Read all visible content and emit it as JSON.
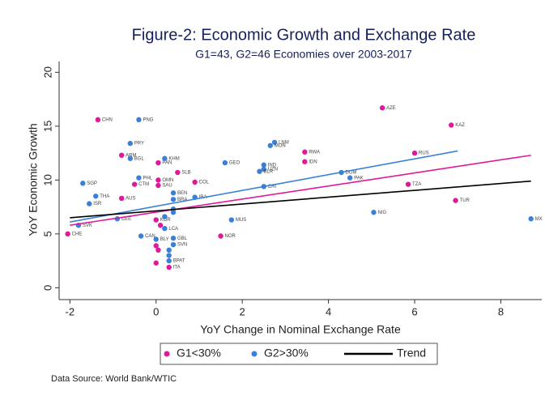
{
  "chart_data": {
    "type": "scatter",
    "title": "Figure-2: Economic Growth and Exchange Rate",
    "subtitle": "G1=43, G2=46 Economies over 2003-2017",
    "x_label": "YoY Change in Nominal Exchange Rate",
    "y_label": "YoY Economic Growth",
    "source": "Data Source: World Bank/WTIC",
    "xlim": [
      -2.25,
      8.95
    ],
    "ylim": [
      -1.1,
      21
    ],
    "xticks": [
      -2,
      0,
      2,
      4,
      6,
      8
    ],
    "yticks": [
      0,
      5,
      10,
      15,
      20
    ],
    "grid": false,
    "legend": "bottom",
    "series": [
      {
        "name": "G1<30%",
        "color": "#e0189a",
        "x": [
          -1.35,
          -0.8,
          0.05,
          0.5,
          0.05,
          0.05,
          -0.5,
          -0.8,
          0.9,
          0.0,
          0.1,
          -2.05,
          1.5,
          3.45,
          3.45,
          5.25,
          6.85,
          6.0,
          5.85,
          6.95,
          0.0,
          0.05,
          0.0,
          0.3
        ],
        "values": [
          15.6,
          12.3,
          11.6,
          10.7,
          10.0,
          9.5,
          9.6,
          8.3,
          9.8,
          6.3,
          5.8,
          5.0,
          4.8,
          12.6,
          11.7,
          16.7,
          15.1,
          12.5,
          9.6,
          8.1,
          3.9,
          3.5,
          2.3,
          1.9
        ],
        "labels": [
          "CHN",
          "ARM",
          "PAN",
          "SLB",
          "OMN",
          "SAU",
          "CTM",
          "AUS",
          "COL",
          "KOR",
          null,
          "CHE",
          "NOR",
          "RWA",
          "IDN",
          "AZE",
          "KAZ",
          "RUS",
          "TZA",
          "TUR",
          null,
          null,
          null,
          "ITA"
        ]
      },
      {
        "name": "G2>30%",
        "color": "#3b80d8",
        "x": [
          -0.4,
          -0.6,
          -0.6,
          0.2,
          -0.4,
          -1.7,
          -1.4,
          -1.55,
          -0.9,
          -1.8,
          -0.35,
          1.6,
          2.75,
          2.65,
          2.5,
          2.5,
          2.4,
          4.3,
          4.5,
          2.5,
          1.75,
          5.05,
          8.7,
          0.9,
          0.4,
          0.4,
          0.4,
          0.2,
          0.2,
          0.0,
          0.4,
          0.4,
          0.3,
          0.3,
          0.3,
          0.4
        ],
        "values": [
          15.6,
          13.4,
          12.0,
          12.0,
          10.2,
          9.7,
          8.5,
          7.8,
          6.4,
          5.8,
          4.8,
          11.6,
          13.5,
          13.2,
          11.4,
          11.0,
          10.8,
          10.7,
          10.2,
          9.4,
          6.3,
          7.0,
          6.4,
          8.4,
          8.8,
          8.2,
          7.3,
          6.6,
          5.5,
          4.5,
          4.6,
          4.0,
          3.5,
          3.0,
          2.5,
          7.0
        ],
        "labels": [
          "PNG",
          "PRY",
          "BGL",
          "KHM",
          "PHL",
          "SGP",
          "THA",
          "ISR",
          "CEE",
          "SVK",
          "CAN",
          "GEO",
          "LNM",
          "MON",
          "IND",
          "UZN",
          "BLR",
          "DOM",
          "PAK",
          "CRI",
          "MUS",
          "NIG",
          "MX",
          "IRA",
          "BEN",
          "BRA",
          null,
          null,
          "LCA",
          "BLY",
          "GBL",
          "SVN",
          null,
          null,
          "BPAT",
          null
        ]
      }
    ],
    "fit_lines": [
      {
        "color": "#e0189a",
        "x": [
          -2,
          8.7
        ],
        "values": [
          5.8,
          12.3
        ]
      },
      {
        "color": "#3b80d8",
        "x": [
          -2,
          7
        ],
        "values": [
          6.1,
          12.7
        ]
      }
    ],
    "trend": {
      "name": "Trend",
      "color": "#000000",
      "x": [
        -2,
        8.7
      ],
      "values": [
        6.5,
        9.9
      ]
    }
  }
}
